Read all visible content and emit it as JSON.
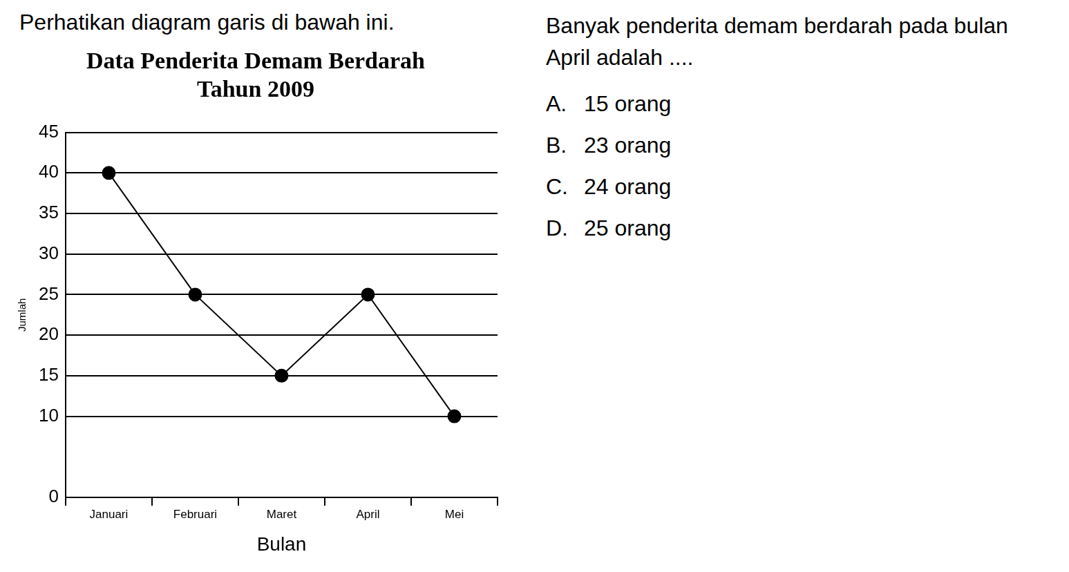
{
  "intro": "Perhatikan diagram garis di bawah ini.",
  "chart_data": {
    "type": "line",
    "title": [
      "Data Penderita Demam Berdarah",
      "Tahun 2009"
    ],
    "x_label": "Bulan",
    "y_label": "Jumlah",
    "categories": [
      "Januari",
      "Februari",
      "Maret",
      "April",
      "Mei"
    ],
    "values": [
      40,
      25,
      15,
      25,
      10
    ],
    "color": "#000000",
    "marker": "circle",
    "line_style": "solid",
    "ylim": [
      0,
      45
    ],
    "yticks": [
      0,
      10,
      15,
      20,
      25,
      30,
      35,
      40,
      45
    ],
    "grid": true
  },
  "question": {
    "text": "Banyak penderita demam berdarah pada bulan April adalah ....",
    "options": [
      {
        "letter": "A.",
        "text": "15 orang"
      },
      {
        "letter": "B.",
        "text": "23 orang"
      },
      {
        "letter": "C.",
        "text": "24 orang"
      },
      {
        "letter": "D.",
        "text": "25 orang"
      }
    ]
  }
}
